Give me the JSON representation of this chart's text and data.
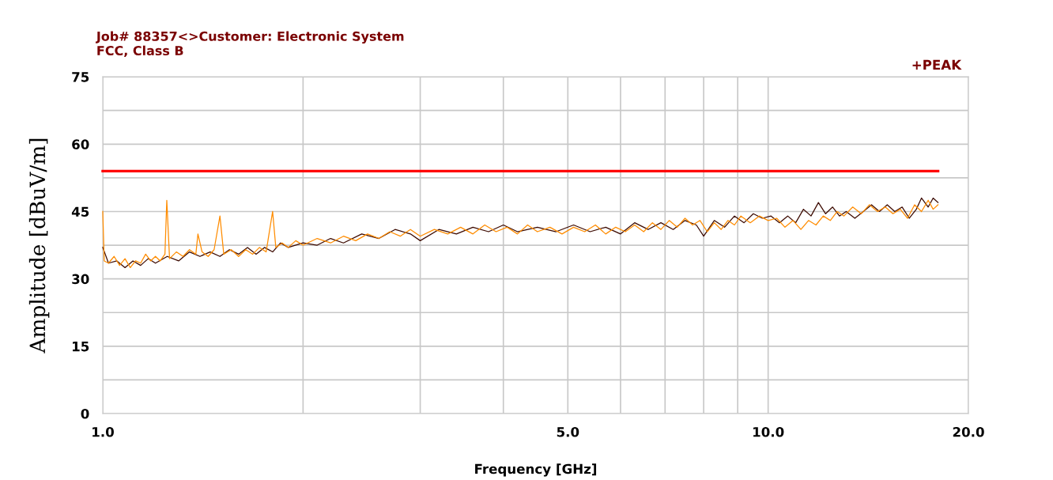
{
  "chart_data": {
    "type": "line",
    "title": "Job# 88357<>Customer: Electronic System",
    "subtitle": "FCC, Class B",
    "xlabel": "Frequency [GHz]",
    "ylabel": "Amplitude [dBuV/m]",
    "annotations": [
      "+PEAK"
    ],
    "log": "x",
    "xlim": [
      1.0,
      20.0
    ],
    "xticks": [
      {
        "value": 1.0,
        "label": "1.0"
      },
      {
        "value": 2,
        "label": null
      },
      {
        "value": 3,
        "label": null
      },
      {
        "value": 4,
        "label": null
      },
      {
        "value": 5.0,
        "label": "5.0"
      },
      {
        "value": 6,
        "label": null
      },
      {
        "value": 7,
        "label": null
      },
      {
        "value": 8,
        "label": null
      },
      {
        "value": 9,
        "label": null
      },
      {
        "value": 10.0,
        "label": "10.0"
      },
      {
        "value": 20.0,
        "label": "20.0"
      }
    ],
    "ylim": [
      0,
      75
    ],
    "yticks": [
      0,
      {
        "value": 7.5,
        "label": null
      },
      15,
      {
        "value": 22.5,
        "label": null
      },
      30,
      {
        "value": 37.5,
        "label": null
      },
      45,
      {
        "value": 52.5,
        "label": null
      },
      60,
      {
        "value": 67.5,
        "label": null
      },
      75
    ],
    "grid": true,
    "legend": false,
    "series": [
      {
        "color": "#3c0a00",
        "x": [
          1.0,
          1.02,
          1.05,
          1.08,
          1.11,
          1.14,
          1.17,
          1.2,
          1.25,
          1.3,
          1.35,
          1.4,
          1.45,
          1.5,
          1.55,
          1.6,
          1.65,
          1.7,
          1.75,
          1.8,
          1.85,
          1.9,
          2.0,
          2.1,
          2.2,
          2.3,
          2.45,
          2.6,
          2.75,
          2.9,
          3.0,
          3.2,
          3.4,
          3.6,
          3.8,
          4.0,
          4.2,
          4.5,
          4.8,
          5.1,
          5.4,
          5.7,
          6.0,
          6.3,
          6.6,
          6.9,
          7.2,
          7.5,
          7.8,
          8.0,
          8.3,
          8.6,
          8.9,
          9.2,
          9.5,
          9.8,
          10.1,
          10.4,
          10.7,
          11.0,
          11.3,
          11.6,
          11.9,
          12.2,
          12.5,
          12.8,
          13.1,
          13.5,
          13.9,
          14.3,
          14.7,
          15.1,
          15.5,
          15.9,
          16.3,
          16.7,
          17.0,
          17.4,
          17.7,
          18.0
        ],
        "values": [
          37,
          33.5,
          34,
          32.5,
          34,
          33,
          34.5,
          33.5,
          35,
          34,
          36,
          35,
          36,
          35,
          36.5,
          35.5,
          37,
          35.5,
          37,
          36,
          38,
          37,
          38,
          37.5,
          39,
          38,
          40,
          39,
          41,
          40,
          38.5,
          41,
          40,
          41.5,
          40.5,
          42,
          40.5,
          41.5,
          40.5,
          42,
          40.5,
          41.5,
          40,
          42.5,
          41,
          42.5,
          41,
          43,
          42,
          39.5,
          43,
          41.5,
          44,
          42.5,
          44.5,
          43.5,
          44,
          42.5,
          44,
          42.5,
          45.5,
          44,
          47,
          44.5,
          46,
          44,
          45,
          43.5,
          45,
          46.5,
          45,
          46.5,
          45,
          46,
          43.5,
          45.5,
          48,
          46,
          48,
          47
        ]
      },
      {
        "color": "#ff8c00",
        "x": [
          1.0,
          1.005,
          1.02,
          1.04,
          1.06,
          1.08,
          1.1,
          1.12,
          1.14,
          1.16,
          1.18,
          1.2,
          1.22,
          1.24,
          1.248,
          1.26,
          1.29,
          1.32,
          1.35,
          1.38,
          1.39,
          1.41,
          1.44,
          1.47,
          1.5,
          1.52,
          1.56,
          1.6,
          1.64,
          1.68,
          1.72,
          1.76,
          1.8,
          1.82,
          1.86,
          1.9,
          1.95,
          2.0,
          2.1,
          2.2,
          2.3,
          2.4,
          2.5,
          2.6,
          2.7,
          2.8,
          2.9,
          3.0,
          3.15,
          3.3,
          3.45,
          3.6,
          3.75,
          3.9,
          4.05,
          4.2,
          4.35,
          4.5,
          4.7,
          4.9,
          5.1,
          5.3,
          5.5,
          5.7,
          5.9,
          6.1,
          6.3,
          6.5,
          6.7,
          6.9,
          7.1,
          7.3,
          7.5,
          7.7,
          7.9,
          8.1,
          8.3,
          8.5,
          8.7,
          8.9,
          9.1,
          9.4,
          9.7,
          10.0,
          10.3,
          10.6,
          10.9,
          11.2,
          11.5,
          11.8,
          12.1,
          12.4,
          12.7,
          13.0,
          13.4,
          13.8,
          14.2,
          14.6,
          15.0,
          15.4,
          15.8,
          16.2,
          16.6,
          17.0,
          17.4,
          17.7,
          18.0
        ],
        "values": [
          45,
          34,
          33.5,
          35,
          33,
          34.5,
          32.5,
          34,
          33.5,
          35.5,
          34,
          35,
          34,
          35.5,
          47.5,
          34.5,
          36,
          35,
          36.5,
          35.5,
          40,
          36,
          35,
          36.5,
          44,
          35.5,
          36.5,
          35,
          36.5,
          35.5,
          37,
          36,
          45,
          37,
          38,
          37,
          38.5,
          37.5,
          39,
          38,
          39.5,
          38.5,
          40,
          39,
          40.5,
          39.5,
          41,
          39.5,
          41,
          40,
          41.5,
          40,
          42,
          40.5,
          41.5,
          40,
          42,
          40.5,
          41.5,
          40,
          41.5,
          40.5,
          42,
          40,
          41.5,
          40.5,
          42,
          40.5,
          42.5,
          41,
          43,
          41.5,
          43.5,
          42,
          43,
          40.5,
          42.5,
          41,
          43,
          42,
          44,
          42.5,
          44,
          43,
          43.5,
          41.5,
          43,
          41,
          43,
          42,
          44,
          43,
          45,
          44,
          46,
          44.5,
          46.5,
          45,
          46,
          44.5,
          45.5,
          43.5,
          46.5,
          45,
          47.5,
          45.5,
          46.5
        ]
      },
      {
        "color": "#ff0000",
        "x": [
          1.0,
          18.0
        ],
        "values": [
          54,
          54
        ]
      }
    ]
  }
}
